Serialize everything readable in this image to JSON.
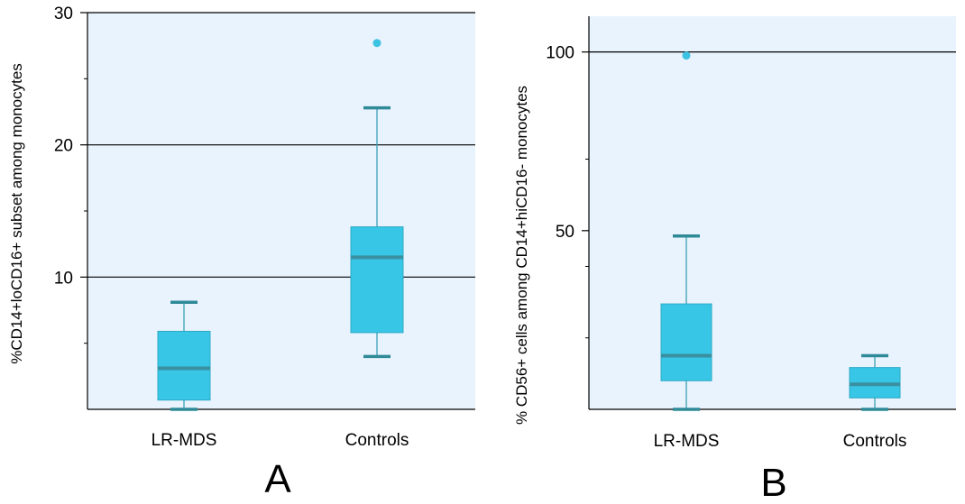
{
  "colors": {
    "plot_background": "#e9f3fd",
    "box_fill": "#37c6e6",
    "box_stroke": "#2ea9c6",
    "median_line": "#3a8fa0",
    "whisker": "#3aa0b4",
    "whisker_cap": "#2f8a98",
    "outlier": "#3ec2e2",
    "gridline": "#000000",
    "axis": "#000000",
    "text": "#000000"
  },
  "chart_data": [
    {
      "type": "box",
      "panel_label": "A",
      "ylabel": "%CD14+loCD16+ subset among monocytes",
      "xlabel": "",
      "ylim": [
        0,
        30
      ],
      "yticks": [
        10,
        20,
        30
      ],
      "minor_yticks": [
        5,
        15,
        25
      ],
      "grid_y": [
        10,
        20,
        30
      ],
      "categories": [
        "LR-MDS",
        "Controls"
      ],
      "boxes": [
        {
          "category": "LR-MDS",
          "whisker_low": 0,
          "q1": 0.7,
          "median": 3.1,
          "q3": 5.9,
          "whisker_high": 8.1,
          "outliers": []
        },
        {
          "category": "Controls",
          "whisker_low": 4.0,
          "q1": 5.8,
          "median": 11.5,
          "q3": 13.8,
          "whisker_high": 22.8,
          "outliers": [
            27.7
          ]
        }
      ]
    },
    {
      "type": "box",
      "panel_label": "B",
      "ylabel": "% CD56+ cells among CD14+hiCD16- monocytes",
      "xlabel": "",
      "ylim": [
        0,
        110
      ],
      "yticks": [
        50,
        100
      ],
      "minor_yticks": [
        20,
        40,
        70
      ],
      "grid_y": [
        100
      ],
      "categories": [
        "LR-MDS",
        "Controls"
      ],
      "boxes": [
        {
          "category": "LR-MDS",
          "whisker_low": 0,
          "q1": 8.0,
          "median": 15.0,
          "q3": 29.5,
          "whisker_high": 48.5,
          "outliers": [
            99.0
          ]
        },
        {
          "category": "Controls",
          "whisker_low": 0,
          "q1": 3.2,
          "median": 7.0,
          "q3": 11.7,
          "whisker_high": 15.0,
          "outliers": []
        }
      ]
    }
  ]
}
